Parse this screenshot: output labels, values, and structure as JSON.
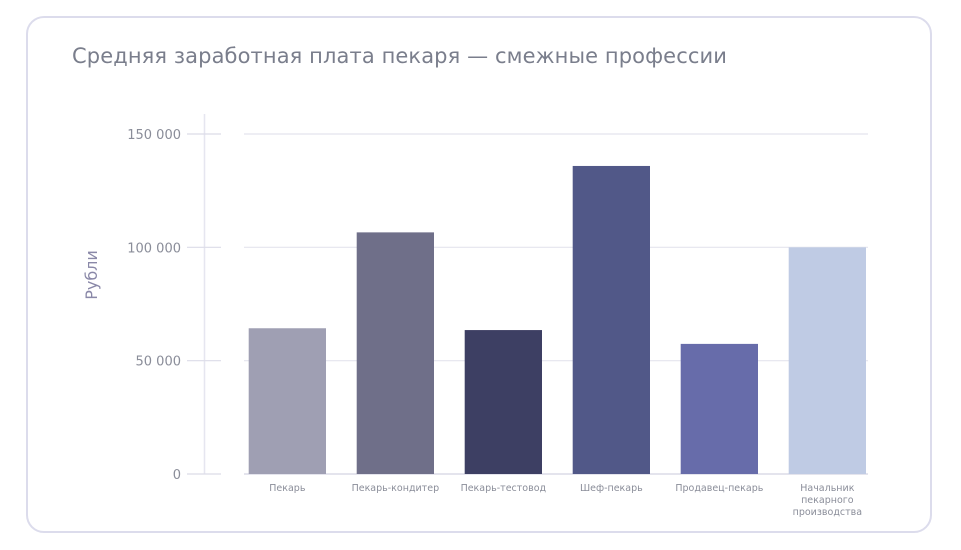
{
  "chart_data": {
    "type": "bar",
    "title": "Средняя заработная плата пекаря — смежные профессии",
    "xlabel": "",
    "ylabel": "Рубли",
    "ylim": [
      0,
      150000
    ],
    "yticks": [
      0,
      50000,
      100000,
      150000
    ],
    "ytick_labels": [
      "0",
      "50 000",
      "100 000",
      "150 000"
    ],
    "grid": true,
    "categories": [
      [
        "Пекарь"
      ],
      [
        "Пекарь-кондитер"
      ],
      [
        "Пекарь-тестовод"
      ],
      [
        "Шеф-пекарь"
      ],
      [
        "Продавец-пекарь"
      ],
      [
        "Начальник",
        "пекарного",
        "производства"
      ]
    ],
    "values": [
      64300,
      106600,
      63500,
      135900,
      57400,
      100000
    ],
    "colors": [
      "#9f9fb3",
      "#6f6f89",
      "#3d3f63",
      "#515888",
      "#676caa",
      "#bfcbe4"
    ]
  }
}
